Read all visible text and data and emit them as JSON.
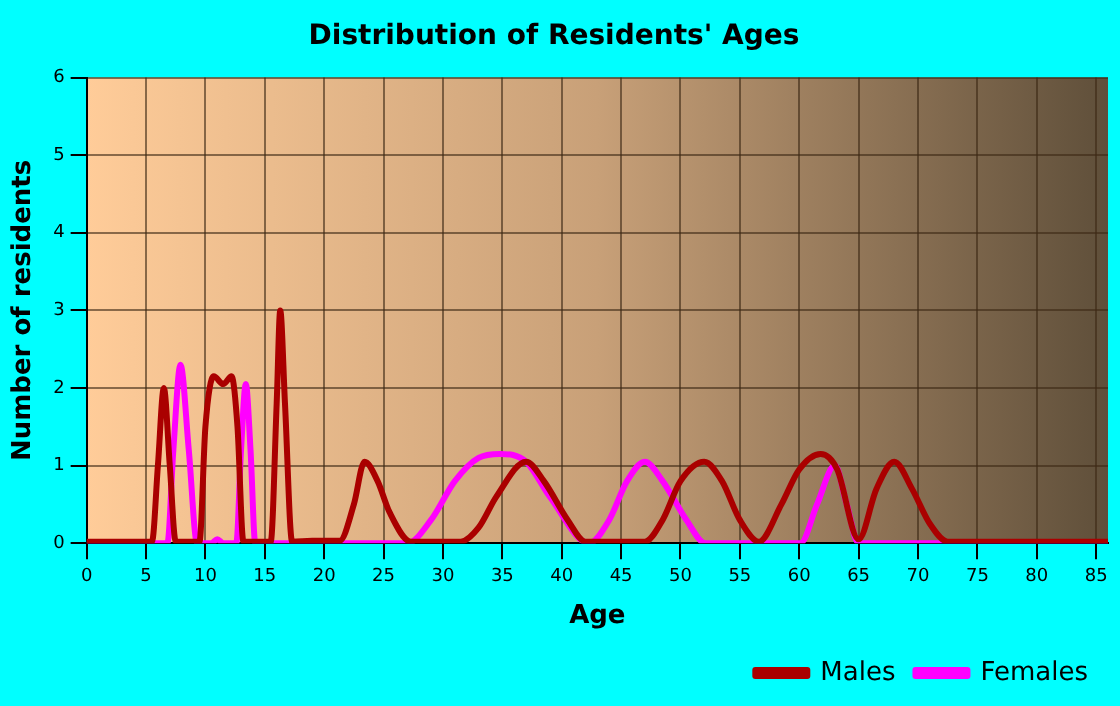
{
  "chart_data": {
    "type": "line",
    "title": "Distribution of Residents' Ages",
    "xlabel": "Age",
    "ylabel": "Number of residents",
    "xlim": [
      0,
      86
    ],
    "xticks": [
      0,
      5,
      10,
      15,
      20,
      25,
      30,
      35,
      40,
      45,
      50,
      55,
      60,
      65,
      70,
      75,
      80,
      85
    ],
    "ylim": [
      0,
      6
    ],
    "yticks": [
      0,
      1,
      2,
      3,
      4,
      5,
      6
    ],
    "grid": true,
    "legend": "bottom",
    "marker": "none",
    "line_style": "solid",
    "series": [
      {
        "name": "Males",
        "color": "#aa0000",
        "x": [
          0,
          5.5,
          6,
          6.5,
          7,
          7.5,
          9.5,
          10,
          10.7,
          11.5,
          12.2,
          12.7,
          13.2,
          15.5,
          16,
          16.3,
          16.7,
          17.3,
          19,
          21.3,
          22.5,
          23.4,
          24.5,
          25.5,
          27.3,
          31.5,
          33,
          34.5,
          37,
          38.5,
          40.5,
          42,
          47,
          48.5,
          50,
          52,
          53.5,
          55,
          56.6,
          58.5,
          60,
          61.8,
          63.2,
          65,
          66.5,
          68,
          69.5,
          71,
          72.5,
          86
        ],
        "values": [
          0.02,
          0.02,
          1,
          2,
          1,
          0.02,
          0.02,
          1.5,
          2.15,
          2.05,
          2.15,
          1.5,
          0.02,
          0.02,
          1.8,
          3,
          1.8,
          0.02,
          0.03,
          0.03,
          0.5,
          1.05,
          0.8,
          0.4,
          0.02,
          0.02,
          0.2,
          0.6,
          1.05,
          0.8,
          0.3,
          0.02,
          0.02,
          0.3,
          0.8,
          1.05,
          0.8,
          0.3,
          0.02,
          0.5,
          0.95,
          1.15,
          0.95,
          0.05,
          0.7,
          1.05,
          0.7,
          0.25,
          0.02,
          0.02
        ]
      },
      {
        "name": "Females",
        "color": "#ff00ff",
        "x": [
          0,
          6.8,
          7.3,
          7.9,
          8.6,
          9.3,
          10.5,
          11,
          11.5,
          12.6,
          13,
          13.4,
          13.8,
          14.2,
          27,
          29,
          31,
          33,
          34.8,
          37,
          39,
          42.3,
          44,
          45.5,
          47,
          48.5,
          50.5,
          52.1,
          60.1,
          61.5,
          63,
          64,
          65,
          86
        ],
        "values": [
          0,
          0,
          1.2,
          2.3,
          1.2,
          0,
          0,
          0.05,
          0,
          0,
          1.2,
          2.05,
          1.2,
          0,
          0,
          0.3,
          0.8,
          1.1,
          1.15,
          1.05,
          0.6,
          0,
          0.3,
          0.8,
          1.05,
          0.8,
          0.3,
          0,
          0,
          0.5,
          1,
          0.5,
          0,
          0
        ]
      }
    ]
  }
}
